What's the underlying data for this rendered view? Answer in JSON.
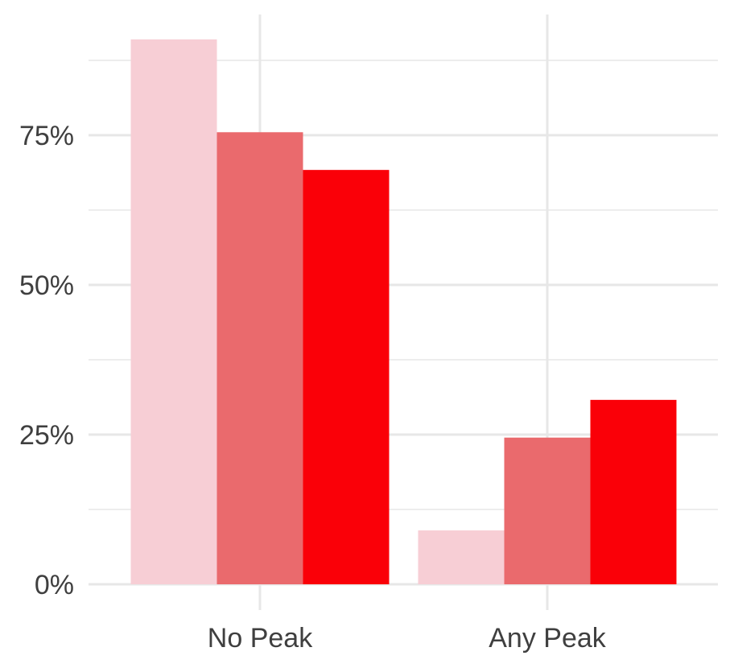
{
  "chart_data": {
    "type": "bar",
    "categories": [
      "No Peak",
      "Any Peak"
    ],
    "series": [
      {
        "values": [
          0.91,
          0.09
        ],
        "color": "#f7ced5"
      },
      {
        "values": [
          0.755,
          0.245
        ],
        "color": "#ea6a6d"
      },
      {
        "values": [
          0.692,
          0.308
        ],
        "color": "#fa0008"
      }
    ],
    "ylim": [
      0,
      0.95
    ],
    "yticks": [
      0,
      0.25,
      0.5,
      0.75
    ],
    "ytick_labels": [
      "0%",
      "25%",
      "50%",
      "75%"
    ],
    "title": "",
    "xlabel": "",
    "ylabel": "",
    "grid": true,
    "legend": "none",
    "colors": {
      "grid": "#e7e7e7",
      "tick_text": "#3f3f3f",
      "background": "#ffffff"
    }
  }
}
